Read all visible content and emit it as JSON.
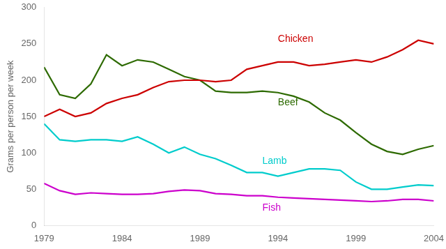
{
  "chart_data": {
    "type": "line",
    "y_label": "Grams per person per week",
    "x": [
      1979,
      1980,
      1981,
      1982,
      1983,
      1984,
      1985,
      1986,
      1987,
      1988,
      1989,
      1990,
      1991,
      1992,
      1993,
      1994,
      1995,
      1996,
      1997,
      1998,
      1999,
      2000,
      2001,
      2002,
      2003,
      2004
    ],
    "series": [
      {
        "name": "Chicken",
        "color": "#cc0000",
        "values": [
          150,
          160,
          150,
          155,
          168,
          175,
          180,
          190,
          198,
          200,
          200,
          198,
          200,
          215,
          220,
          225,
          225,
          220,
          222,
          225,
          228,
          225,
          232,
          242,
          255,
          250
        ]
      },
      {
        "name": "Beef",
        "color": "#2d6a00",
        "values": [
          218,
          180,
          175,
          195,
          235,
          220,
          228,
          225,
          215,
          205,
          200,
          185,
          183,
          183,
          185,
          183,
          178,
          170,
          155,
          145,
          128,
          112,
          102,
          98,
          105,
          110
        ]
      },
      {
        "name": "Lamb",
        "color": "#00cccc",
        "values": [
          140,
          118,
          116,
          118,
          118,
          116,
          122,
          112,
          100,
          108,
          98,
          92,
          83,
          73,
          73,
          68,
          73,
          78,
          78,
          76,
          60,
          50,
          50,
          53,
          56,
          55
        ]
      },
      {
        "name": "Fish",
        "color": "#cc00cc",
        "values": [
          58,
          48,
          43,
          45,
          44,
          43,
          43,
          44,
          47,
          49,
          48,
          44,
          43,
          41,
          41,
          39,
          38,
          37,
          36,
          35,
          34,
          33,
          34,
          36,
          36,
          34
        ]
      }
    ],
    "annotations": [
      {
        "text": "Chicken",
        "x": 1994,
        "y": 250,
        "color": "#cc0000"
      },
      {
        "text": "Beef",
        "x": 1994,
        "y": 162,
        "color": "#2d6a00"
      },
      {
        "text": "Lamb",
        "x": 1993,
        "y": 82,
        "color": "#00cccc"
      },
      {
        "text": "Fish",
        "x": 1993,
        "y": 18,
        "color": "#cc00cc"
      }
    ],
    "xlim": [
      1979,
      2004
    ],
    "xticks": [
      1979,
      1984,
      1989,
      1994,
      1999,
      2004
    ],
    "ylim": [
      0,
      300
    ],
    "yticks": [
      0,
      50,
      100,
      150,
      200,
      250,
      300
    ],
    "grid": false
  }
}
